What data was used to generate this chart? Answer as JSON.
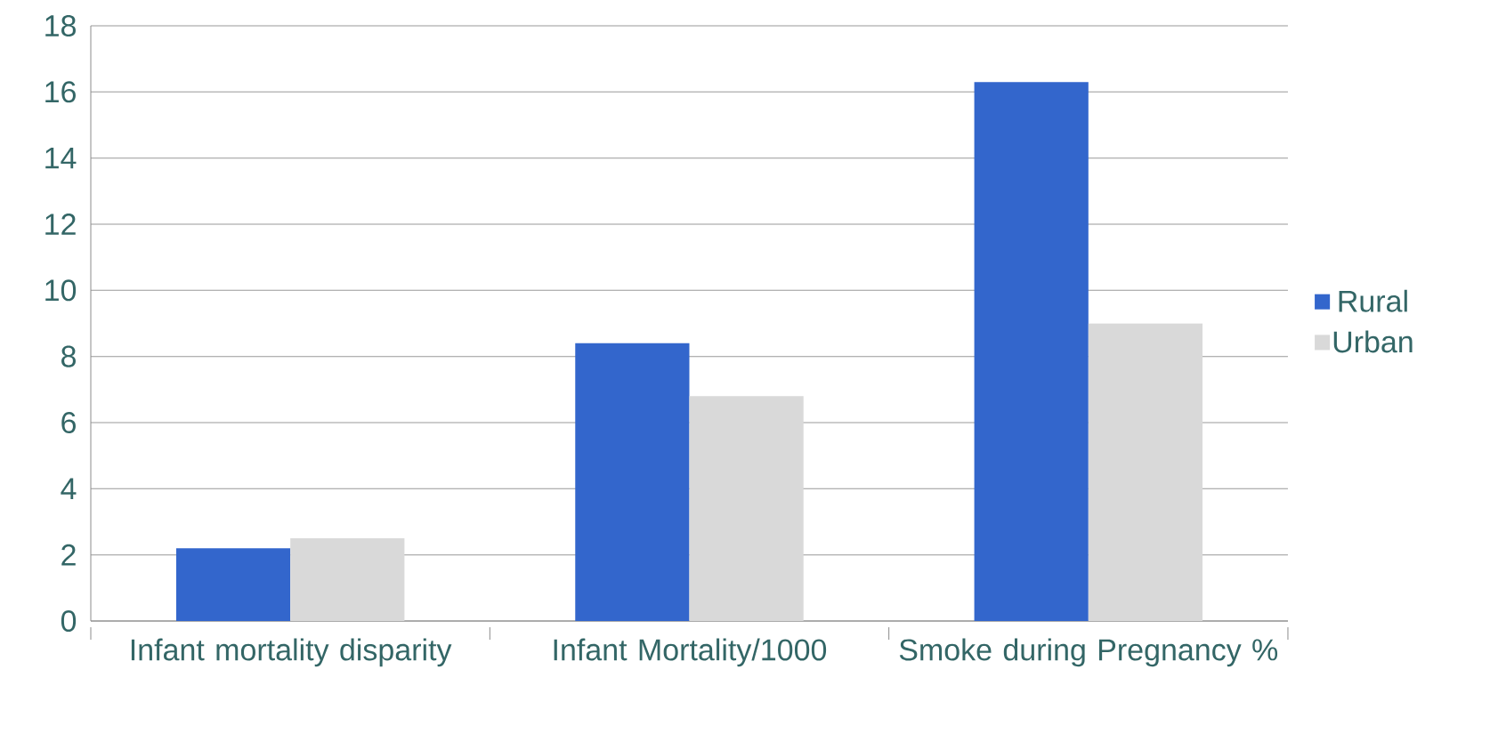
{
  "chart_data": {
    "type": "bar",
    "categories": [
      "Infant mortality disparity",
      "Infant Mortality/1000",
      "Smoke during Pregnancy %"
    ],
    "series": [
      {
        "name": "Rural",
        "color": "#3366cc",
        "values": [
          2.2,
          8.4,
          16.3
        ]
      },
      {
        "name": "Urban",
        "color": "#d9d9d9",
        "values": [
          2.5,
          6.8,
          9.0
        ]
      }
    ],
    "ylim": [
      0,
      18
    ],
    "yticks": [
      0,
      2,
      4,
      6,
      8,
      10,
      12,
      14,
      16,
      18
    ],
    "grid": "y",
    "legend": "right"
  }
}
